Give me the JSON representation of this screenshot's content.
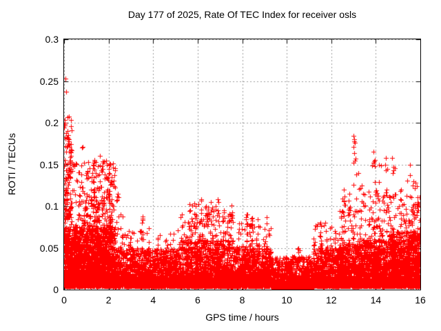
{
  "page": {
    "background": "#ffffff"
  },
  "chart_data": {
    "type": "scatter",
    "title": "Day 177 of 2025, Rate Of TEC Index for receiver osls",
    "xlabel": "GPS time / hours",
    "ylabel": "ROTI / TECUs",
    "xlim": [
      0,
      16
    ],
    "ylim": [
      0,
      0.3
    ],
    "xticks": [
      0,
      2,
      4,
      6,
      8,
      10,
      12,
      14,
      16
    ],
    "xtick_labels": [
      "0",
      "2",
      "4",
      "6",
      "8",
      "10",
      "12",
      "14",
      "16"
    ],
    "yticks": [
      0,
      0.05,
      0.1,
      0.15,
      0.2,
      0.25,
      0.3
    ],
    "ytick_labels": [
      "0",
      "0.05",
      "0.1",
      "0.15",
      "0.2",
      "0.25",
      "0.3"
    ],
    "grid": true,
    "grid_style": "dashed",
    "grid_color": "#999999",
    "axis_color": "#000000",
    "marker": "plus",
    "marker_color": "#ff0000",
    "legend": null,
    "seed": 177,
    "point_distribution": {
      "comment_free": "",
      "segments": [
        [
          0.0,
          16.0,
          1200,
          0.003,
          0.012,
          1.0
        ],
        [
          0.0,
          2.3,
          1700,
          0.004,
          0.075,
          1.6
        ],
        [
          0.0,
          2.3,
          800,
          0.01,
          0.155,
          2.8
        ],
        [
          0.0,
          0.35,
          120,
          0.02,
          0.21,
          2.2
        ],
        [
          2.3,
          5.2,
          1200,
          0.004,
          0.05,
          2.2
        ],
        [
          2.3,
          5.2,
          150,
          0.01,
          0.075,
          2.5
        ],
        [
          5.2,
          7.6,
          1100,
          0.004,
          0.06,
          2.2
        ],
        [
          5.2,
          7.6,
          350,
          0.01,
          0.105,
          2.6
        ],
        [
          7.6,
          9.3,
          900,
          0.004,
          0.05,
          2.2
        ],
        [
          7.6,
          9.3,
          200,
          0.01,
          0.088,
          2.6
        ],
        [
          9.3,
          11.2,
          900,
          0.003,
          0.04,
          2.0
        ],
        [
          11.2,
          12.3,
          550,
          0.004,
          0.05,
          2.2
        ],
        [
          11.2,
          12.3,
          120,
          0.01,
          0.08,
          2.5
        ],
        [
          12.3,
          13.4,
          600,
          0.004,
          0.055,
          2.2
        ],
        [
          12.3,
          13.4,
          160,
          0.01,
          0.1,
          2.6
        ],
        [
          13.4,
          14.6,
          700,
          0.004,
          0.06,
          2.2
        ],
        [
          13.4,
          14.6,
          200,
          0.01,
          0.12,
          2.6
        ],
        [
          14.6,
          16.0,
          1000,
          0.004,
          0.07,
          2.0
        ],
        [
          14.6,
          16.0,
          250,
          0.01,
          0.115,
          2.5
        ]
      ],
      "spikes": [
        [
          0.05,
          0.2,
          14
        ],
        [
          0.12,
          0.19,
          10
        ],
        [
          0.2,
          0.175,
          12
        ],
        [
          0.3,
          0.165,
          8
        ],
        [
          0.85,
          0.17,
          8
        ],
        [
          1.0,
          0.14,
          10
        ],
        [
          1.3,
          0.15,
          20
        ],
        [
          1.4,
          0.155,
          22
        ],
        [
          1.5,
          0.148,
          18
        ],
        [
          1.6,
          0.16,
          14
        ],
        [
          1.75,
          0.145,
          10
        ],
        [
          1.95,
          0.15,
          18
        ],
        [
          2.05,
          0.145,
          12
        ],
        [
          2.15,
          0.135,
          10
        ],
        [
          2.4,
          0.115,
          12
        ],
        [
          2.6,
          0.09,
          8
        ],
        [
          3.0,
          0.07,
          8
        ],
        [
          3.5,
          0.088,
          12
        ],
        [
          4.2,
          0.062,
          8
        ],
        [
          4.6,
          0.058,
          8
        ],
        [
          5.6,
          0.095,
          10
        ],
        [
          5.9,
          0.1,
          12
        ],
        [
          6.15,
          0.108,
          14
        ],
        [
          6.4,
          0.1,
          12
        ],
        [
          6.65,
          0.105,
          10
        ],
        [
          6.9,
          0.108,
          12
        ],
        [
          7.15,
          0.095,
          10
        ],
        [
          7.4,
          0.09,
          8
        ],
        [
          8.2,
          0.09,
          12
        ],
        [
          8.45,
          0.085,
          10
        ],
        [
          8.7,
          0.075,
          8
        ],
        [
          9.0,
          0.06,
          6
        ],
        [
          10.5,
          0.05,
          6
        ],
        [
          11.5,
          0.08,
          10
        ],
        [
          11.8,
          0.06,
          6
        ],
        [
          12.55,
          0.12,
          14
        ],
        [
          12.75,
          0.115,
          10
        ],
        [
          13.0,
          0.18,
          16
        ],
        [
          13.2,
          0.14,
          8
        ],
        [
          13.35,
          0.125,
          8
        ],
        [
          13.95,
          0.165,
          14
        ],
        [
          14.2,
          0.15,
          10
        ],
        [
          14.45,
          0.158,
          10
        ],
        [
          14.8,
          0.158,
          12
        ],
        [
          15.1,
          0.12,
          8
        ],
        [
          15.5,
          0.15,
          12
        ],
        [
          15.7,
          0.13,
          10
        ],
        [
          15.85,
          0.128,
          10
        ],
        [
          15.95,
          0.105,
          12
        ]
      ],
      "outlier_points": [
        [
          0.05,
          0.253
        ],
        [
          0.08,
          0.237
        ],
        [
          0.02,
          0.203
        ],
        [
          0.04,
          0.197
        ],
        [
          0.1,
          0.188
        ],
        [
          0.15,
          0.183
        ],
        [
          0.22,
          0.178
        ],
        [
          0.06,
          0.172
        ],
        [
          0.3,
          0.168
        ],
        [
          0.85,
          0.171
        ],
        [
          13.0,
          0.184
        ],
        [
          13.03,
          0.178
        ]
      ]
    }
  }
}
